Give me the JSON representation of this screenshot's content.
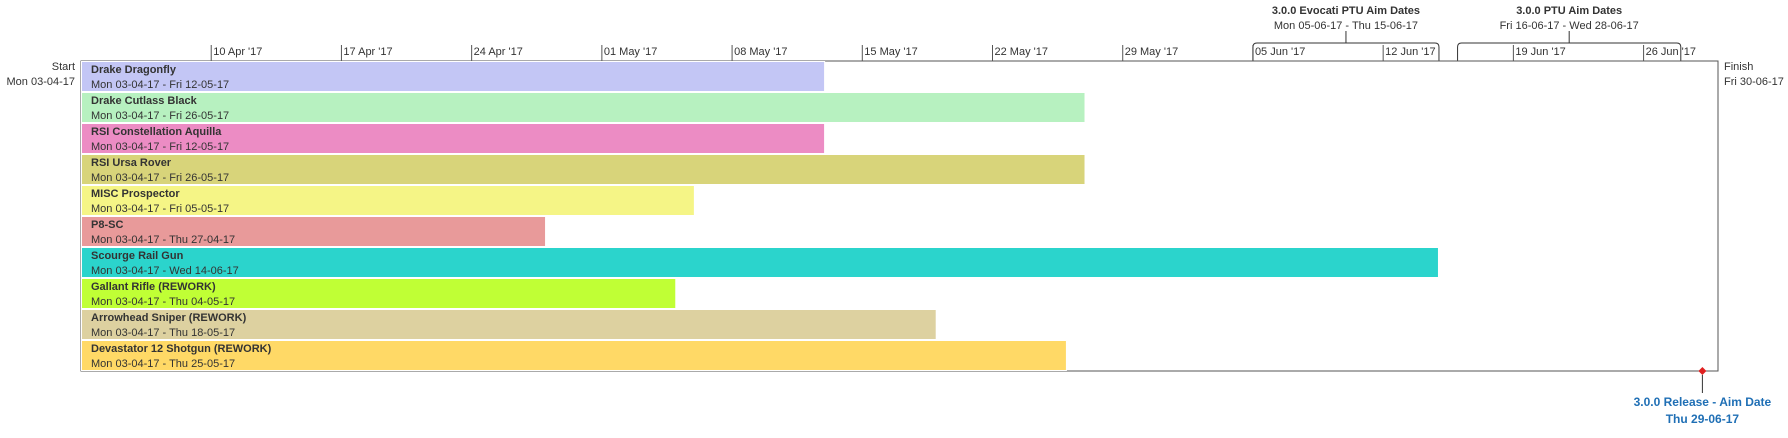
{
  "chart_data": {
    "type": "gantt",
    "start": {
      "label": "Start",
      "date_label": "Mon 03-04-17",
      "date": "2017-04-03"
    },
    "finish": {
      "label": "Finish",
      "date_label": "Fri 30-06-17",
      "date": "2017-06-30"
    },
    "ticks": [
      {
        "date": "2017-04-10",
        "label": "10 Apr '17"
      },
      {
        "date": "2017-04-17",
        "label": "17 Apr '17"
      },
      {
        "date": "2017-04-24",
        "label": "24 Apr '17"
      },
      {
        "date": "2017-05-01",
        "label": "01 May '17"
      },
      {
        "date": "2017-05-08",
        "label": "08 May '17"
      },
      {
        "date": "2017-05-15",
        "label": "15 May '17"
      },
      {
        "date": "2017-05-22",
        "label": "22 May '17"
      },
      {
        "date": "2017-05-29",
        "label": "29 May '17"
      },
      {
        "date": "2017-06-05",
        "label": "05 Jun '17"
      },
      {
        "date": "2017-06-12",
        "label": "12 Jun '17"
      },
      {
        "date": "2017-06-19",
        "label": "19 Jun '17"
      },
      {
        "date": "2017-06-26",
        "label": "26 Jun '17"
      }
    ],
    "tasks": [
      {
        "name": "Drake Dragonfly",
        "dates": "Mon 03-04-17 - Fri 12-05-17",
        "start": "2017-04-03",
        "end": "2017-05-12",
        "color": "#c3c6f5"
      },
      {
        "name": "Drake Cutlass Black",
        "dates": "Mon 03-04-17 - Fri 26-05-17",
        "start": "2017-04-03",
        "end": "2017-05-26",
        "color": "#b7f1c0"
      },
      {
        "name": "RSI Constellation Aquilla",
        "dates": "Mon 03-04-17 - Fri 12-05-17",
        "start": "2017-04-03",
        "end": "2017-05-12",
        "color": "#ec8cc4"
      },
      {
        "name": "RSI Ursa Rover",
        "dates": "Mon 03-04-17 - Fri 26-05-17",
        "start": "2017-04-03",
        "end": "2017-05-26",
        "color": "#d8d47a"
      },
      {
        "name": "MISC Prospector",
        "dates": "Mon 03-04-17 - Fri 05-05-17",
        "start": "2017-04-03",
        "end": "2017-05-05",
        "color": "#f5f586"
      },
      {
        "name": "P8-SC",
        "dates": "Mon 03-04-17 - Thu 27-04-17",
        "start": "2017-04-03",
        "end": "2017-04-27",
        "color": "#e89a9a"
      },
      {
        "name": "Scourge Rail Gun",
        "dates": "Mon 03-04-17 - Wed 14-06-17",
        "start": "2017-04-03",
        "end": "2017-06-14",
        "color": "#2bd4cc"
      },
      {
        "name": "Gallant Rifle (REWORK)",
        "dates": "Mon 03-04-17 - Thu 04-05-17",
        "start": "2017-04-03",
        "end": "2017-05-04",
        "color": "#c0ff35"
      },
      {
        "name": "Arrowhead Sniper (REWORK)",
        "dates": "Mon 03-04-17 - Thu 18-05-17",
        "start": "2017-04-03",
        "end": "2017-05-18",
        "color": "#ddd1a0"
      },
      {
        "name": "Devastator 12 Shotgun (REWORK)",
        "dates": "Mon 03-04-17 - Thu 25-05-17",
        "start": "2017-04-03",
        "end": "2017-05-25",
        "color": "#ffd966"
      }
    ],
    "spans": [
      {
        "title": "3.0.0 Evocati PTU Aim Dates",
        "dates": "Mon 05-06-17 - Thu 15-06-17",
        "start": "2017-06-05",
        "end": "2017-06-15"
      },
      {
        "title": "3.0.0 PTU Aim Dates",
        "dates": "Fri 16-06-17 - Wed 28-06-17",
        "start": "2017-06-16",
        "end": "2017-06-28"
      }
    ],
    "milestones": [
      {
        "title": "3.0.0 Release - Aim Date",
        "date_label": "Thu 29-06-17",
        "date": "2017-06-29",
        "color": "#e02020",
        "label_color": "#1f6fb5"
      }
    ]
  }
}
